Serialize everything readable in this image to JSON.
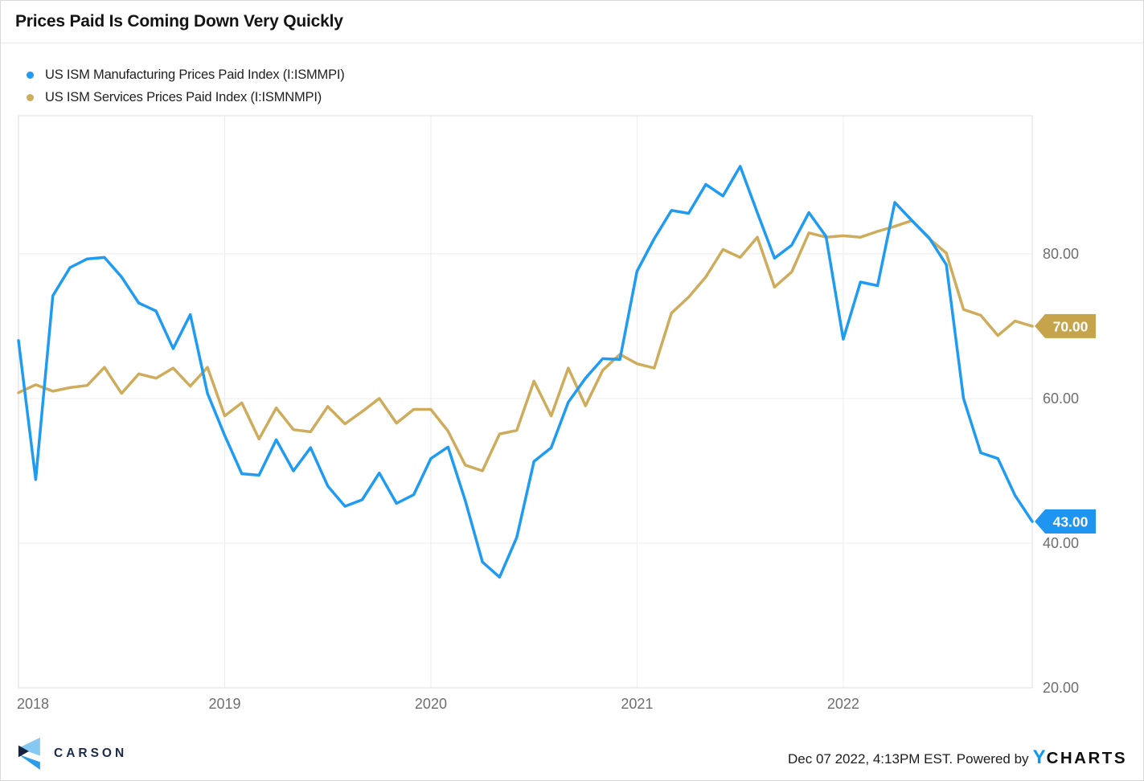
{
  "title": "Prices Paid Is Coming Down Very Quickly",
  "chart_data": {
    "type": "line",
    "title": "Prices Paid Is Coming Down Very Quickly",
    "xlabel": "",
    "ylabel": "",
    "x_unit": "month",
    "x_start": "2018-01",
    "x_end": "2022-12",
    "ylim": [
      20,
      99.1
    ],
    "grid": true,
    "legend_position": "top-left",
    "yticks": [
      {
        "value": 80,
        "label": "80.00"
      },
      {
        "value": 60,
        "label": "60.00"
      },
      {
        "value": 40,
        "label": "40.00"
      },
      {
        "value": 20,
        "label": "20.00"
      }
    ],
    "year_ticks": [
      {
        "label": "2018",
        "index": 0
      },
      {
        "label": "2019",
        "index": 12
      },
      {
        "label": "2020",
        "index": 24
      },
      {
        "label": "2021",
        "index": 36
      },
      {
        "label": "2022",
        "index": 48
      }
    ],
    "series": [
      {
        "id": "manufacturing",
        "name": "US ISM Manufacturing Prices Paid Index (I:ISMMPI)",
        "color": "#1f9bf2",
        "tag": {
          "label": "43.00",
          "value": 43.0,
          "color": "#1e96f1"
        },
        "values": [
          68.0,
          48.8,
          74.2,
          78.1,
          79.3,
          79.5,
          76.8,
          73.2,
          72.1,
          66.9,
          71.6,
          60.7,
          54.9,
          49.6,
          49.4,
          54.3,
          50.0,
          53.2,
          47.9,
          45.1,
          46.0,
          49.7,
          45.5,
          46.7,
          51.7,
          53.3,
          45.9,
          37.4,
          35.3,
          40.8,
          51.3,
          53.2,
          59.5,
          62.8,
          65.5,
          65.4,
          77.6,
          82.1,
          86.0,
          85.6,
          89.6,
          88.0,
          92.1,
          85.7,
          79.4,
          81.2,
          85.7,
          82.4,
          68.2,
          76.1,
          75.6,
          87.1,
          84.6,
          82.2,
          78.5,
          60.0,
          52.5,
          51.7,
          46.6,
          43.0
        ]
      },
      {
        "id": "services",
        "name": "US ISM Services Prices Paid Index (I:ISMNMPI)",
        "color": "#ceac5c",
        "tag": {
          "label": "70.00",
          "value": 70.0,
          "color": "#c6a44c"
        },
        "values": [
          60.8,
          61.9,
          61.0,
          61.5,
          61.8,
          64.3,
          60.7,
          63.4,
          62.8,
          64.2,
          61.7,
          64.3,
          57.6,
          59.4,
          54.4,
          58.7,
          55.7,
          55.4,
          58.9,
          56.5,
          58.2,
          60.0,
          56.6,
          58.5,
          58.5,
          55.5,
          50.8,
          50.0,
          55.1,
          55.6,
          62.4,
          57.6,
          64.2,
          59.0,
          63.9,
          66.1,
          64.8,
          64.2,
          71.8,
          74.0,
          76.8,
          80.6,
          79.5,
          82.3,
          75.4,
          77.5,
          82.9,
          82.3,
          82.5,
          82.3,
          83.1,
          83.8,
          84.6,
          82.1,
          80.1,
          72.3,
          71.5,
          68.7,
          70.7,
          70.0
        ]
      }
    ],
    "axis_text_color": "#6e6e6e",
    "grid_color": "#ececec",
    "border_color": "#dedede"
  },
  "footer": {
    "brand": "CARSON",
    "timestamp": "Dec 07 2022, 4:13PM EST. Powered by",
    "ycharts_y": "Y",
    "ycharts_rest": "CHARTS"
  }
}
